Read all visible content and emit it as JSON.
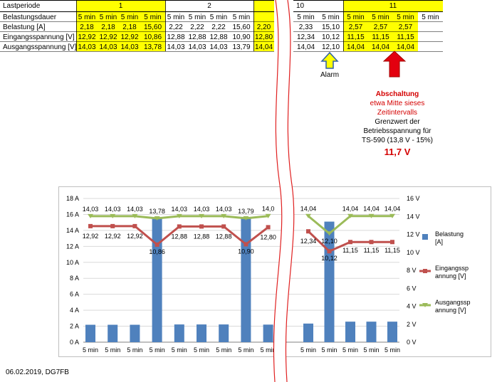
{
  "table": {
    "row_labels": [
      "Lastperiode",
      "Belastungsdauer",
      "Belastung [A]",
      "Eingangsspannung [V]",
      "Ausgangsspannung [V]"
    ],
    "period_labels": [
      "1",
      "2",
      "",
      "10",
      "11"
    ],
    "left": {
      "duration": [
        "5 min",
        "5 min",
        "5 min",
        "5 min",
        "5 min",
        "5 min",
        "5 min",
        "5 min",
        ""
      ],
      "load": [
        "2,18",
        "2,18",
        "2,18",
        "15,60",
        "2,22",
        "2,22",
        "2,22",
        "15,60",
        "2,20"
      ],
      "input": [
        "12,92",
        "12,92",
        "12,92",
        "10,86",
        "12,88",
        "12,88",
        "12,88",
        "10,90",
        "12,80"
      ],
      "output": [
        "14,03",
        "14,03",
        "14,03",
        "13,78",
        "14,03",
        "14,03",
        "14,03",
        "13,79",
        "14,04"
      ]
    },
    "right": {
      "duration": [
        "5 min",
        "5 min",
        "5 min",
        "5 min",
        "5 min",
        "5 min"
      ],
      "load": [
        "2,33",
        "15,10",
        "2,57",
        "2,57",
        "2,57",
        ""
      ],
      "input": [
        "12,34",
        "10,12",
        "11,15",
        "11,15",
        "11,15",
        ""
      ],
      "output": [
        "14,04",
        "12,10",
        "14,04",
        "14,04",
        "14,04",
        ""
      ]
    }
  },
  "annotations": {
    "alarm": "Alarm",
    "shutdown_title": "Abschaltung",
    "shutdown_lines": [
      "etwa Mitte sieses",
      "Zeitintervalls"
    ],
    "limit_lines": [
      "Grenzwert der",
      "Betriebsspannung für",
      "TS-590 (13,8 V - 15%)"
    ],
    "limit_value": "11,7 V"
  },
  "colors": {
    "highlight": "#ffff00",
    "bar": "#4f81bd",
    "input_line": "#c0504d",
    "output_line": "#9bbb59",
    "alarm_arrow": "#ffff00",
    "alarm_outline": "#2e5fa8",
    "shutdown_arrow": "#e3000f",
    "break_line": "#e02020",
    "annotation_red": "#d40000"
  },
  "chart_data": {
    "type": "bar",
    "categories": [
      "5 min",
      "5 min",
      "5 min",
      "5 min",
      "5 min",
      "5 min",
      "5 min",
      "5 min",
      "5 min",
      "5 min",
      "5 min",
      "5 min",
      "5 min",
      "5 min"
    ],
    "series": [
      {
        "name": "Belastung [A]",
        "type": "bar",
        "axis": "left",
        "values": [
          2.18,
          2.18,
          2.18,
          15.6,
          2.22,
          2.22,
          2.22,
          15.6,
          2.2,
          2.33,
          15.1,
          2.57,
          2.57,
          2.57
        ]
      },
      {
        "name": "Eingangsspannung [V]",
        "type": "line",
        "axis": "right",
        "values": [
          12.92,
          12.92,
          12.92,
          10.86,
          12.88,
          12.88,
          12.88,
          10.9,
          12.8,
          12.34,
          10.12,
          11.15,
          11.15,
          11.15
        ],
        "labels": [
          "12,92",
          "12,92",
          "12,92",
          "10,86",
          "12,88",
          "12,88",
          "12,88",
          "10,90",
          "12,80",
          "12,34",
          "10,12",
          "11,15",
          "11,15",
          "11,15"
        ]
      },
      {
        "name": "Ausgangsspannung [V]",
        "type": "line",
        "axis": "right",
        "values": [
          14.03,
          14.03,
          14.03,
          13.78,
          14.03,
          14.03,
          14.03,
          13.79,
          14.04,
          14.04,
          12.1,
          14.04,
          14.04,
          14.04
        ],
        "labels": [
          "14,03",
          "14,03",
          "14,03",
          "13,78",
          "14,03",
          "14,03",
          "14,03",
          "13,79",
          "14,0",
          "14,04",
          "12,10",
          "14,04",
          "14,04",
          "14,04"
        ]
      }
    ],
    "legend_names": [
      "Belastung\n[A]",
      "Eingangssp\nannung [V]",
      "Ausgangssp\nannung [V]"
    ],
    "y_left": {
      "min": 0,
      "max": 18,
      "ticks": [
        "0 A",
        "2 A",
        "4 A",
        "6 A",
        "8 A",
        "10 A",
        "12 A",
        "14 A",
        "16 A",
        "18 A"
      ]
    },
    "y_right": {
      "min": 0,
      "max": 16,
      "ticks": [
        "0 V",
        "2 V",
        "4 V",
        "6 V",
        "8 V",
        "10 V",
        "12 V",
        "14 V",
        "16 V"
      ]
    },
    "grid": true,
    "legend_position": "right"
  },
  "footer": "06.02.2019, DG7FB"
}
